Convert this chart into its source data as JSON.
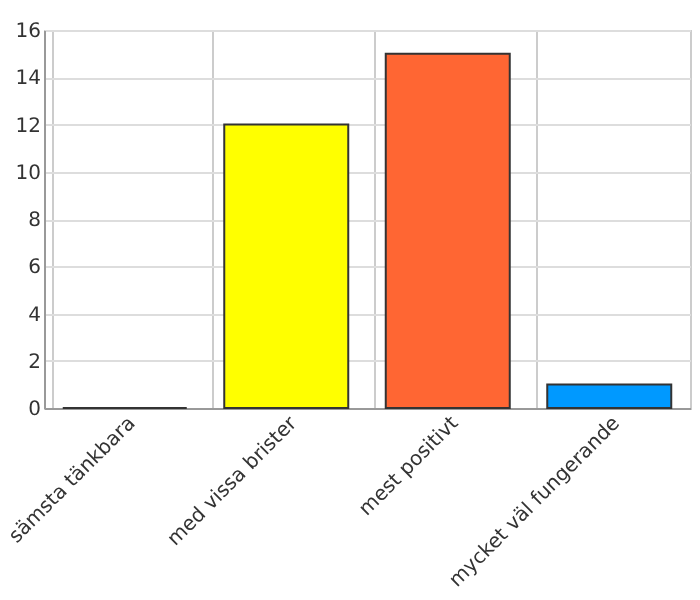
{
  "chart_data": {
    "type": "bar",
    "categories": [
      "sämsta tänkbara",
      "med vissa brister",
      "mest positivt",
      "mycket väl fungerande"
    ],
    "values": [
      0,
      12,
      15,
      1
    ],
    "colors": [
      "#333333",
      "#ffff00",
      "#ff6633",
      "#0099ff"
    ],
    "ylim": [
      0,
      16
    ],
    "yticks": [
      0,
      2,
      4,
      6,
      8,
      10,
      12,
      14,
      16
    ],
    "grid": true
  }
}
